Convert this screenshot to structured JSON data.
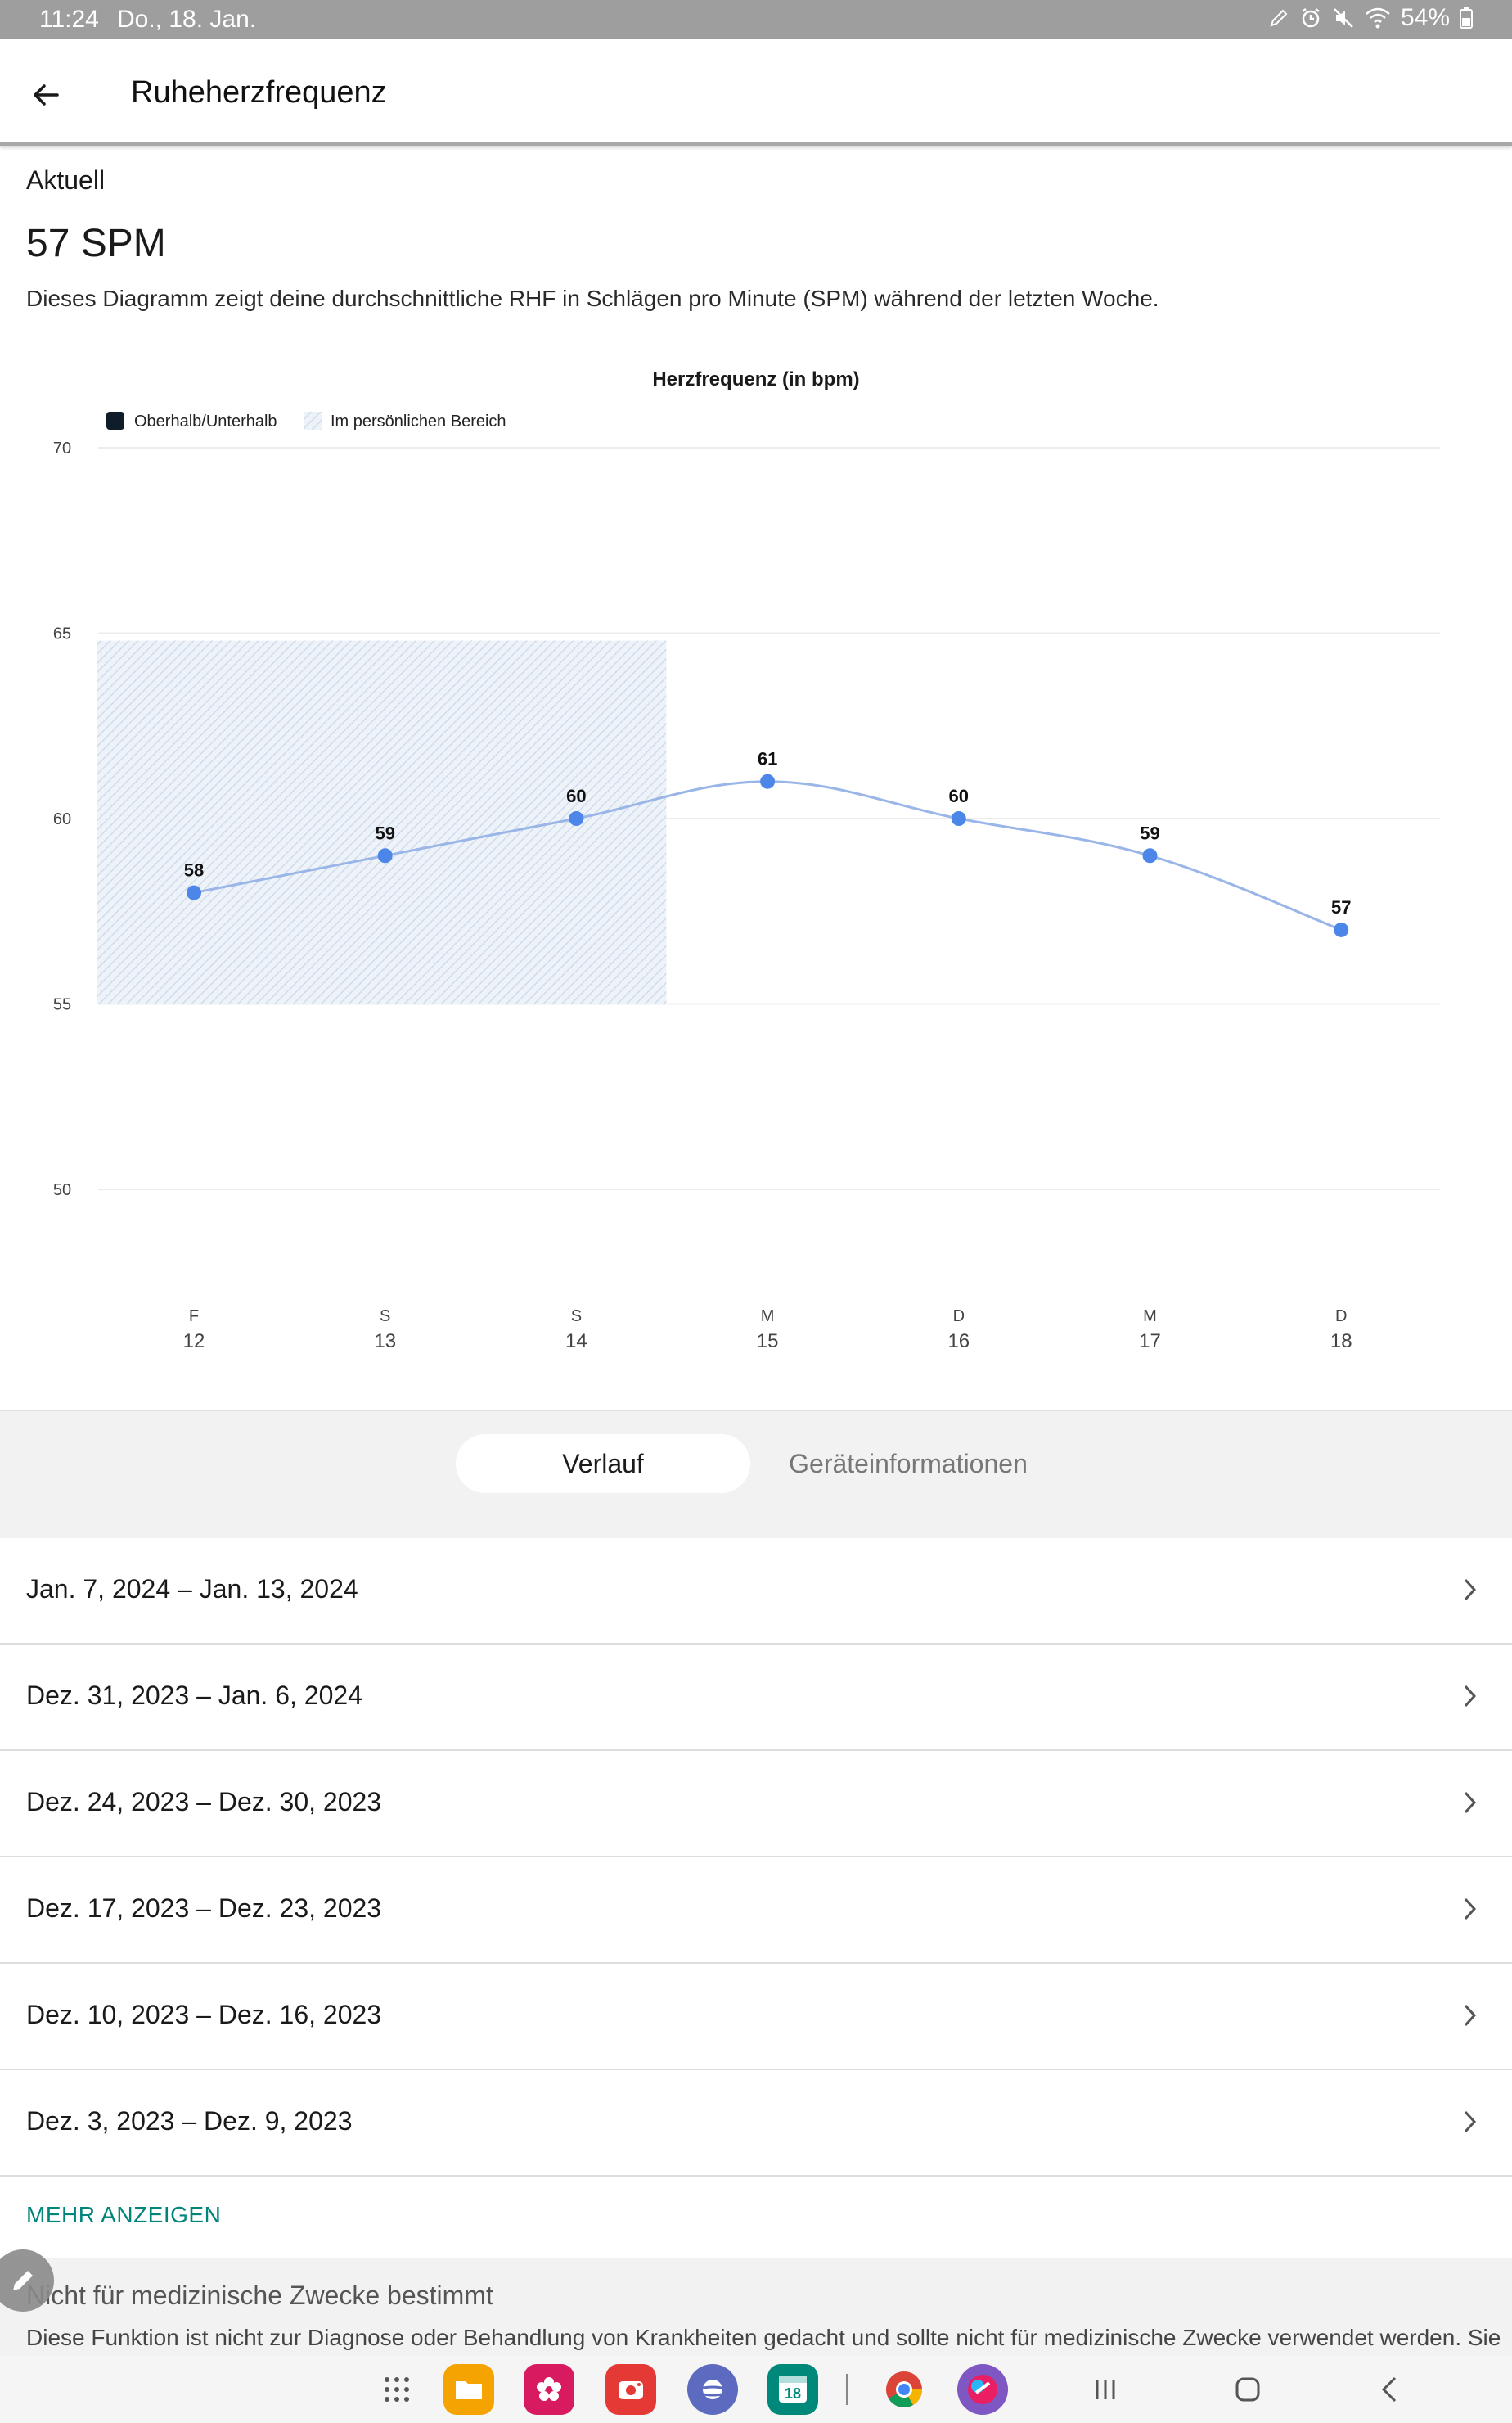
{
  "status_bar": {
    "time": "11:24",
    "date": "Do., 18. Jan.",
    "battery": "54%"
  },
  "app_bar": {
    "title": "Ruheherzfrequenz"
  },
  "current": {
    "label": "Aktuell",
    "value": "57 SPM",
    "description": "Dieses Diagramm zeigt deine durchschnittliche RHF in Schlägen pro Minute (SPM) während der letzten Woche."
  },
  "chart_data": {
    "type": "line",
    "title": "Herzfrequenz (in bpm)",
    "legend": [
      {
        "name": "Oberhalb/Unterhalb",
        "color": "#0f1d2a"
      },
      {
        "name": "Im persönlichen Bereich",
        "color": "#c9d9ea"
      }
    ],
    "legend_position": "top-left",
    "ylim": [
      50,
      70
    ],
    "yticks": [
      70,
      65,
      60,
      55,
      50
    ],
    "categories": [
      {
        "day": "F",
        "date": "12"
      },
      {
        "day": "S",
        "date": "13"
      },
      {
        "day": "S",
        "date": "14"
      },
      {
        "day": "M",
        "date": "15"
      },
      {
        "day": "D",
        "date": "16"
      },
      {
        "day": "M",
        "date": "17"
      },
      {
        "day": "D",
        "date": "18"
      }
    ],
    "values": [
      58,
      59,
      60,
      61,
      60,
      59,
      57
    ],
    "personal_range": {
      "min": 55,
      "max": 64.8,
      "from_index": 0,
      "to_index": 2
    },
    "line_color": "#9ab6e8",
    "point_color": "#4c86e8",
    "grid": true
  },
  "tabs": [
    {
      "label": "Verlauf",
      "active": true
    },
    {
      "label": "Geräteinformationen",
      "active": false
    }
  ],
  "history": [
    {
      "label": "Jan. 7, 2024 – Jan. 13, 2024"
    },
    {
      "label": "Dez. 31, 2023 – Jan. 6, 2024"
    },
    {
      "label": "Dez. 24, 2023 – Dez. 30, 2023"
    },
    {
      "label": "Dez. 17, 2023 – Dez. 23, 2023"
    },
    {
      "label": "Dez. 10, 2023 – Dez. 16, 2023"
    },
    {
      "label": "Dez. 3, 2023 – Dez. 9, 2023"
    }
  ],
  "more_label": "MEHR ANZEIGEN",
  "disclaimer": {
    "title": "Nicht für medizinische Zwecke bestimmt",
    "body": "Diese Funktion ist nicht zur Diagnose oder Behandlung von Krankheiten gedacht und sollte nicht für medizinische Zwecke verwendet werden. Sie"
  },
  "taskbar": {
    "calendar_day": "18"
  }
}
